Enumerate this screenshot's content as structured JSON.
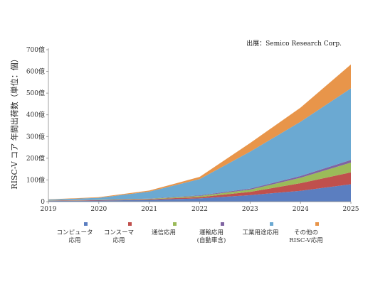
{
  "chart_data": {
    "type": "area",
    "stacked": true,
    "source": "出展：Semico Research Corp.",
    "ylabel": "RISC-V コア 年間出荷数（単位：個）",
    "xlabel": "",
    "x": [
      2019,
      2020,
      2021,
      2022,
      2023,
      2024,
      2025
    ],
    "ylim": [
      0,
      700
    ],
    "yticks": [
      0,
      100,
      200,
      300,
      400,
      500,
      600,
      700
    ],
    "ytick_labels": [
      "0",
      "100億",
      "200億",
      "300億",
      "400億",
      "500億",
      "600億",
      "700億"
    ],
    "grid": false,
    "legend_position": "bottom",
    "series": [
      {
        "name": "コンピュータ\n応用",
        "color": "#5b7ec0",
        "values": [
          3,
          5,
          8,
          15,
          30,
          50,
          80
        ]
      },
      {
        "name": "コンスーマ\n応用",
        "color": "#c0504d",
        "values": [
          1,
          2,
          3,
          6,
          15,
          35,
          55
        ]
      },
      {
        "name": "通信応用",
        "color": "#9bbb59",
        "values": [
          1,
          1,
          2,
          5,
          10,
          25,
          45
        ]
      },
      {
        "name": "運輸応用\n(自動車含)",
        "color": "#8064a2",
        "values": [
          0.5,
          0.5,
          1,
          3,
          5,
          8,
          12
        ]
      },
      {
        "name": "工業用途応用",
        "color": "#6ba9d2",
        "values": [
          4,
          9,
          32,
          75,
          170,
          250,
          330
        ]
      },
      {
        "name": "その他の\nRISC-V応用",
        "color": "#e8954a",
        "values": [
          1,
          3,
          5,
          10,
          40,
          65,
          110
        ]
      }
    ]
  }
}
